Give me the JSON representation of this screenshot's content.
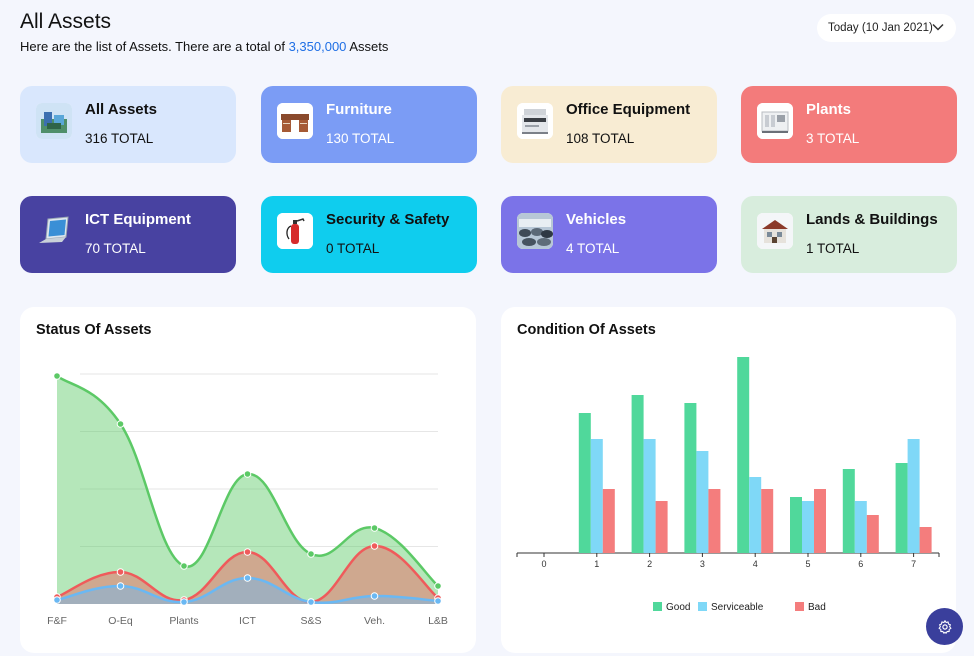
{
  "header": {
    "title": "All Assets",
    "subtitle_prefix": "Here are the list of Assets. There are a total of ",
    "subtitle_total": "3,350,000",
    "subtitle_suffix": " Assets",
    "date_label": "Today (10 Jan 2021)"
  },
  "cards": [
    {
      "name": "All Assets",
      "count": "316 TOTAL",
      "bg": "#d9e7fd",
      "fg": "#111111",
      "icon": "all-assets-icon"
    },
    {
      "name": "Furniture",
      "count": "130 TOTAL",
      "bg": "#7b9cf5",
      "fg": "#ffffff",
      "icon": "furniture-icon"
    },
    {
      "name": "Office Equipment",
      "count": "108 TOTAL",
      "bg": "#f8ecd3",
      "fg": "#111111",
      "icon": "printer-icon"
    },
    {
      "name": "Plants",
      "count": "3 TOTAL",
      "bg": "#f37b7b",
      "fg": "#ffffff",
      "icon": "generator-icon"
    },
    {
      "name": "ICT Equipment",
      "count": "70 TOTAL",
      "bg": "#4842a1",
      "fg": "#ffffff",
      "icon": "laptop-icon"
    },
    {
      "name": "Security & Safety",
      "count": "0 TOTAL",
      "bg": "#0fcdee",
      "fg": "#111111",
      "icon": "fire-extinguisher-icon"
    },
    {
      "name": "Vehicles",
      "count": "4 TOTAL",
      "bg": "#7b73e8",
      "fg": "#ffffff",
      "icon": "vehicles-icon"
    },
    {
      "name": "Lands & Buildings",
      "count": "1 TOTAL",
      "bg": "#d8eddd",
      "fg": "#111111",
      "icon": "building-icon"
    }
  ],
  "status_panel": {
    "title": "Status Of Assets"
  },
  "condition_panel": {
    "title": "Condition Of Assets"
  },
  "chart_data": [
    {
      "type": "area",
      "title": "Status Of Assets",
      "categories": [
        "F&F",
        "O-Eq",
        "Plants",
        "ICT",
        "S&S",
        "Veh.",
        "L&B"
      ],
      "ylim": [
        0,
        230
      ],
      "grid": true,
      "series": [
        {
          "values": [
            228,
            180,
            38,
            130,
            50,
            76,
            18
          ],
          "color": "#5cc966"
        },
        {
          "values": [
            7,
            32,
            4,
            52,
            2,
            58,
            6
          ],
          "color": "#ef5b5b"
        },
        {
          "values": [
            4,
            18,
            2,
            26,
            2,
            8,
            3
          ],
          "color": "#6ab8f3"
        }
      ]
    },
    {
      "type": "bar",
      "title": "Condition Of Assets",
      "categories": [
        "0",
        "1",
        "2",
        "3",
        "4",
        "5",
        "6",
        "7"
      ],
      "ylim": [
        0,
        100
      ],
      "legend_position": "bottom",
      "series": [
        {
          "name": "Good",
          "values": [
            0,
            70,
            79,
            75,
            98,
            28,
            42,
            45
          ],
          "color": "#50d89b"
        },
        {
          "name": "Serviceable",
          "values": [
            0,
            57,
            57,
            51,
            38,
            26,
            26,
            57
          ],
          "color": "#7fd8f7"
        },
        {
          "name": "Bad",
          "values": [
            0,
            32,
            26,
            32,
            32,
            32,
            19,
            13
          ],
          "color": "#f47d7d"
        }
      ]
    }
  ]
}
